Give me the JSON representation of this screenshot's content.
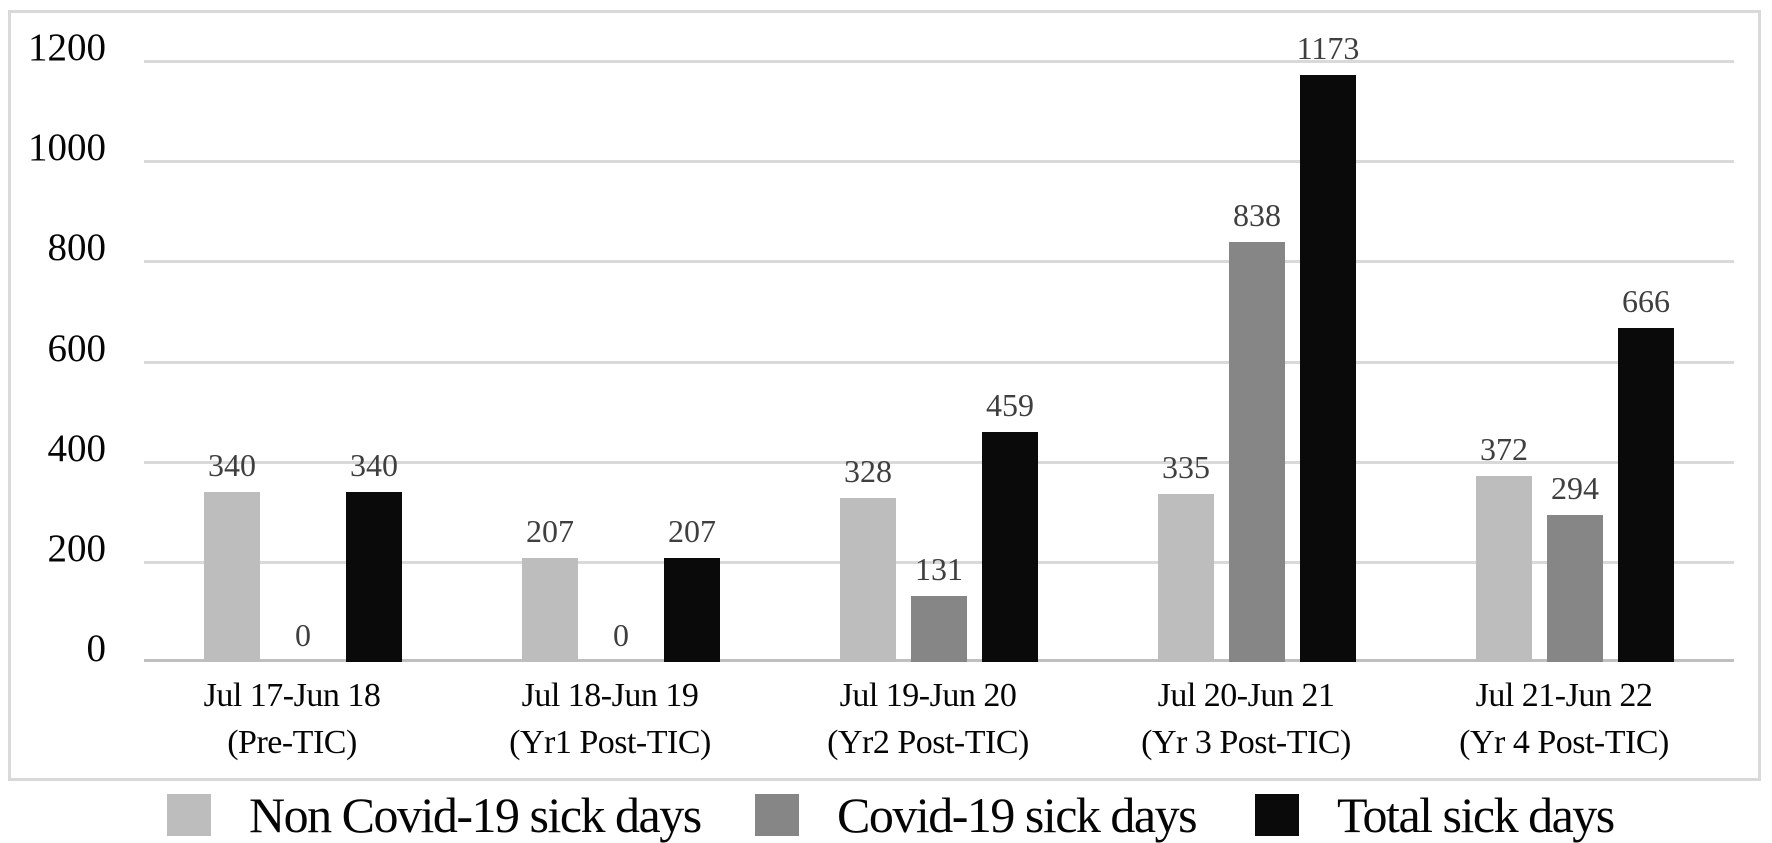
{
  "chart_data": {
    "type": "bar",
    "title": "",
    "xlabel": "",
    "ylabel": "",
    "categories": [
      "Jul 17-Jun 18",
      "Jul 18-Jun 19",
      "Jul 19-Jun 20",
      "Jul 20-Jun 21",
      "Jul 21-Jun 22"
    ],
    "category_sublabels": [
      "(Pre-TIC)",
      "(Yr1 Post-TIC)",
      "(Yr2 Post-TIC)",
      "(Yr 3 Post-TIC)",
      "(Yr 4 Post-TIC)"
    ],
    "series": [
      {
        "name": "Non Covid-19 sick days",
        "color": "#bdbdbd",
        "values": [
          340,
          207,
          328,
          335,
          372
        ]
      },
      {
        "name": "Covid-19 sick days",
        "color": "#868686",
        "values": [
          0,
          0,
          131,
          838,
          294
        ]
      },
      {
        "name": "Total sick days",
        "color": "#0a0a0a",
        "values": [
          340,
          207,
          459,
          1173,
          666
        ]
      }
    ],
    "data_labels": [
      [
        "340",
        "207",
        "328",
        "335",
        "372"
      ],
      [
        "0",
        "0",
        "131",
        "838",
        "294"
      ],
      [
        "340",
        "207",
        "459",
        "1173",
        "666"
      ]
    ],
    "y_ticks": [
      "0",
      "200",
      "400",
      "600",
      "800",
      "1000",
      "1200"
    ],
    "y_tick_values": [
      0,
      200,
      400,
      600,
      800,
      1000,
      1200
    ],
    "ylim": [
      0,
      1200
    ],
    "grid": true,
    "legend_position": "bottom"
  },
  "colors": {
    "background": "#ffffff",
    "frame_border": "#d9d9d9",
    "gridline": "#d9d9d9",
    "baseline": "#bfbfbf",
    "value_label_text": "#3f3f3f",
    "axis_text": "#050505",
    "series_light_gray": "#bdbdbd",
    "series_dark_gray": "#868686",
    "series_black": "#0a0a0a"
  }
}
